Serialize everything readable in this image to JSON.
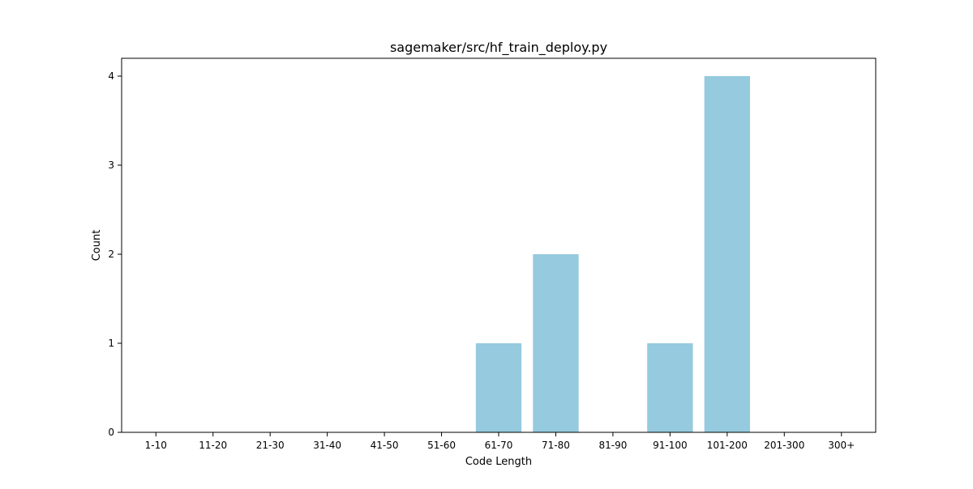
{
  "chart_data": {
    "type": "bar",
    "title": "sagemaker/src/hf_train_deploy.py",
    "xlabel": "Code Length",
    "ylabel": "Count",
    "categories": [
      "1-10",
      "11-20",
      "21-30",
      "31-40",
      "41-50",
      "51-60",
      "61-70",
      "71-80",
      "81-90",
      "91-100",
      "101-200",
      "201-300",
      "300+"
    ],
    "values": [
      0,
      0,
      0,
      0,
      0,
      0,
      1,
      2,
      0,
      1,
      4,
      0,
      0
    ],
    "ylim": [
      0,
      4.2
    ],
    "yticks": [
      "0",
      "1",
      "2",
      "3",
      "4"
    ],
    "grid": false,
    "bar_color": "#96cade"
  }
}
